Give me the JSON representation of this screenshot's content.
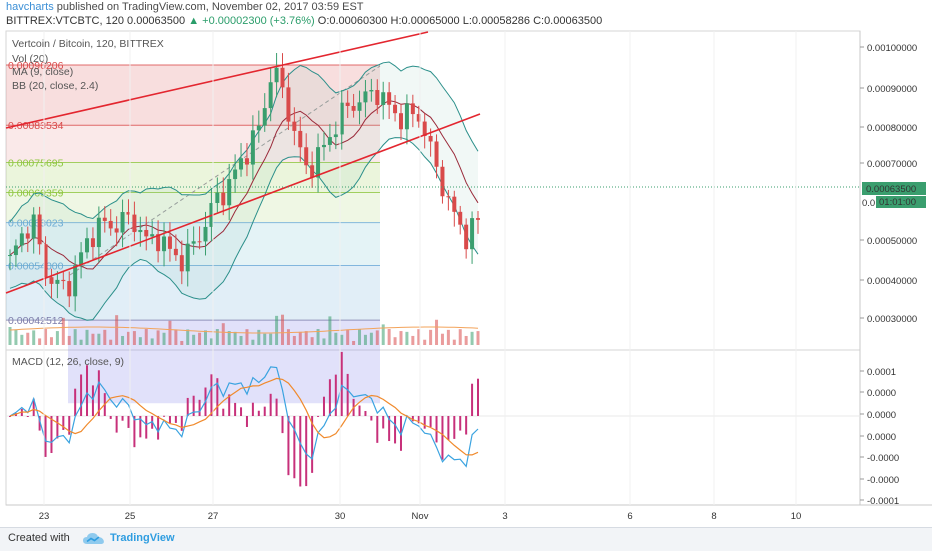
{
  "header": {
    "author": "havcharts",
    "published_text": "published on TradingView.com, November 02, 2017 03:59 EST",
    "symbol_line": "BITTREX:VTCBTC, 120  0.00063500",
    "change": "▲ +0.00002300 (+3.76%)",
    "ohlc": "O:0.00060300 H:0.00065000 L:0.00058286 C:0.00063500"
  },
  "legend": {
    "title": "Vertcoin / Bitcoin, 120, BITTREX",
    "vol": "Vol (20)",
    "ma": "MA (9, close)",
    "bb": "BB (20, close, 2.4)",
    "macd": "MACD (12, 26, close, 9)"
  },
  "fib_labels": [
    "0.00096206",
    "0.00083534",
    "0.00075695",
    "0.00069359",
    "0.00063023",
    "0.00054000",
    "0.00042512"
  ],
  "price_axis": [
    "0.00100000",
    "0.00090000",
    "0.00080000",
    "0.00070000",
    "0.00063500",
    "0.00050000",
    "0.00040000",
    "0.00030000"
  ],
  "countdown": "01:01:00",
  "macd_axis": [
    "0.0001",
    "0.0000",
    "0.0000",
    "0.0000",
    "-0.0000",
    "-0.0000",
    "-0.0001"
  ],
  "time_axis": [
    "23",
    "25",
    "27",
    "30",
    "Nov",
    "3",
    "6",
    "8",
    "10"
  ],
  "footer": {
    "created": "Created with",
    "brand": "TradingView"
  },
  "colors": {
    "up": "#3a9e6e",
    "down": "#d94a4a",
    "fib_red": "#d94a4a",
    "fib_green": "#8ec63f",
    "fib_blue": "#6aa9d8",
    "channel": "#e3262f"
  },
  "chart_data": {
    "type": "candlestick",
    "title": "Vertcoin / Bitcoin, 120, BITTREX",
    "price_range": [
      0.0003,
      0.00102
    ],
    "fib_levels": [
      0.00096206,
      0.00083534,
      0.00075695,
      0.00069359,
      0.00063023,
      0.00054,
      0.00042512
    ],
    "last_price": 0.000635,
    "close_path": [
      0.00055,
      0.0006,
      0.00064,
      0.00053,
      0.0005,
      0.00049,
      0.00055,
      0.0006,
      0.00063,
      0.00062,
      0.00064,
      0.00063,
      0.00059,
      0.0006,
      0.00057,
      0.00055,
      0.00058,
      0.00062,
      0.00068,
      0.0007,
      0.00075,
      0.00079,
      0.00084,
      0.00096,
      0.0009,
      0.00081,
      0.00074,
      0.00077,
      0.00081,
      0.00086,
      0.00088,
      0.00089,
      0.00091,
      0.00088,
      0.00085,
      0.00086,
      0.00085,
      0.00077,
      0.0007,
      0.00064,
      0.0006,
      0.000635
    ],
    "macd_range": [
      -0.0001,
      0.00012
    ]
  }
}
